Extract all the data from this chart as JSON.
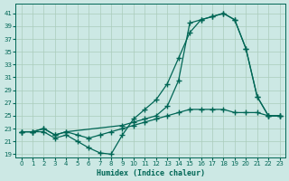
{
  "xlabel": "Humidex (Indice chaleur)",
  "bg_color": "#cce8e4",
  "grid_color": "#aaccbb",
  "line_color": "#006655",
  "xlim": [
    -0.5,
    23.5
  ],
  "ylim": [
    18.5,
    42.5
  ],
  "yticks": [
    19,
    21,
    23,
    25,
    27,
    29,
    31,
    33,
    35,
    37,
    39,
    41
  ],
  "xticks": [
    0,
    1,
    2,
    3,
    4,
    5,
    6,
    7,
    8,
    9,
    10,
    11,
    12,
    13,
    14,
    15,
    16,
    17,
    18,
    19,
    20,
    21,
    22,
    23
  ],
  "curve1_x": [
    0,
    1,
    2,
    3,
    4,
    5,
    6,
    7,
    8,
    9,
    10,
    11,
    12,
    13,
    14,
    15,
    16,
    17,
    18,
    19,
    20,
    21,
    22,
    23
  ],
  "curve1_y": [
    22.5,
    22.5,
    22.5,
    21.5,
    22.0,
    21.0,
    20.0,
    19.2,
    19.0,
    22.0,
    24.5,
    26.0,
    27.5,
    30.0,
    34.0,
    38.0,
    40.0,
    40.5,
    41.0,
    40.0,
    35.5,
    28.0,
    25.0,
    25.0
  ],
  "curve2_x": [
    0,
    1,
    2,
    3,
    4,
    9,
    10,
    11,
    12,
    13,
    14,
    15,
    16,
    17,
    18,
    19,
    20,
    21,
    22,
    23
  ],
  "curve2_y": [
    22.5,
    22.5,
    23.0,
    22.0,
    22.5,
    23.5,
    24.0,
    24.5,
    25.0,
    26.5,
    30.5,
    39.5,
    40.0,
    40.5,
    41.0,
    40.0,
    35.5,
    28.0,
    25.0,
    25.0
  ],
  "curve3_x": [
    0,
    1,
    2,
    3,
    4,
    5,
    6,
    7,
    8,
    9,
    10,
    11,
    12,
    13,
    14,
    15,
    16,
    17,
    18,
    19,
    20,
    21,
    22,
    23
  ],
  "curve3_y": [
    22.5,
    22.5,
    23.0,
    22.0,
    22.5,
    22.0,
    21.5,
    22.0,
    22.5,
    23.0,
    23.5,
    24.0,
    24.5,
    25.0,
    25.5,
    26.0,
    26.0,
    26.0,
    26.0,
    25.5,
    25.5,
    25.5,
    25.0,
    25.0
  ]
}
